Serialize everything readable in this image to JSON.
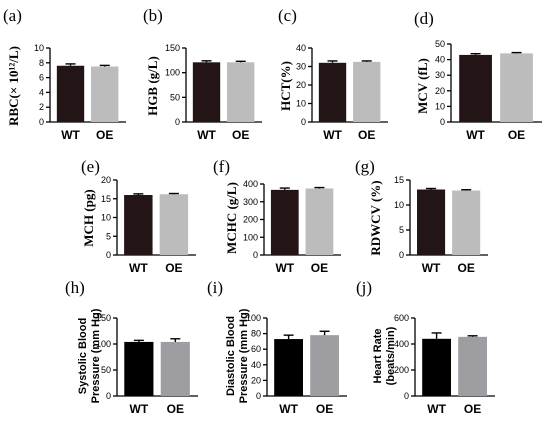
{
  "chart_data": [
    {
      "id": "a",
      "type": "bar",
      "panel_label": "(a)",
      "ylabel": "RBC(× 10¹²/L)",
      "yticks": [
        "0",
        "2",
        "4",
        "6",
        "8",
        "10"
      ],
      "ylim": [
        0,
        10
      ],
      "categories": [
        "WT",
        "OE"
      ],
      "values": [
        7.6,
        7.5
      ],
      "errors": [
        0.25,
        0.15
      ],
      "colors": [
        "#231416",
        "#bcbcbc"
      ]
    },
    {
      "id": "b",
      "type": "bar",
      "panel_label": "(b)",
      "ylabel": "HGB (g/L)",
      "yticks": [
        "0",
        "50",
        "100",
        "150"
      ],
      "ylim": [
        0,
        150
      ],
      "categories": [
        "WT",
        "OE"
      ],
      "values": [
        121,
        121
      ],
      "errors": [
        3,
        2
      ],
      "colors": [
        "#231416",
        "#bcbcbc"
      ]
    },
    {
      "id": "c",
      "type": "bar",
      "panel_label": "(c)",
      "ylabel": "HCT(%)",
      "yticks": [
        "0",
        "10",
        "20",
        "30",
        "40"
      ],
      "ylim": [
        0,
        40
      ],
      "categories": [
        "WT",
        "OE"
      ],
      "values": [
        32,
        32.5
      ],
      "errors": [
        1,
        0.5
      ],
      "colors": [
        "#231416",
        "#bcbcbc"
      ]
    },
    {
      "id": "d",
      "type": "bar",
      "panel_label": "(d)",
      "ylabel": "MCV (fL)",
      "yticks": [
        "0",
        "10",
        "20",
        "30",
        "40",
        "50"
      ],
      "ylim": [
        0,
        50
      ],
      "categories": [
        "WT",
        "OE"
      ],
      "values": [
        43,
        44
      ],
      "errors": [
        0.8,
        0.5
      ],
      "colors": [
        "#231416",
        "#bcbcbc"
      ]
    },
    {
      "id": "e",
      "type": "bar",
      "panel_label": "(e)",
      "ylabel": "MCH (pg)",
      "yticks": [
        "0",
        "5",
        "10",
        "15",
        "20"
      ],
      "ylim": [
        0,
        20
      ],
      "categories": [
        "WT",
        "OE"
      ],
      "values": [
        16,
        16.2
      ],
      "errors": [
        0.3,
        0.2
      ],
      "colors": [
        "#231416",
        "#bcbcbc"
      ]
    },
    {
      "id": "f",
      "type": "bar",
      "panel_label": "(f)",
      "ylabel": "MCHC (g/L)",
      "yticks": [
        "0",
        "100",
        "200",
        "300",
        "400"
      ],
      "ylim": [
        0,
        400
      ],
      "categories": [
        "WT",
        "OE"
      ],
      "values": [
        367,
        375
      ],
      "errors": [
        10,
        5
      ],
      "colors": [
        "#231416",
        "#bcbcbc"
      ]
    },
    {
      "id": "g",
      "type": "bar",
      "panel_label": "(g)",
      "ylabel": "RDWCV (%)",
      "yticks": [
        "0",
        "5",
        "10",
        "15"
      ],
      "ylim": [
        0,
        15
      ],
      "categories": [
        "WT",
        "OE"
      ],
      "values": [
        13.1,
        12.9
      ],
      "errors": [
        0.2,
        0.15
      ],
      "colors": [
        "#231416",
        "#bcbcbc"
      ]
    },
    {
      "id": "h",
      "type": "bar",
      "panel_label": "(h)",
      "ylabel": "Systolic Blood Pressure (mm Hg)",
      "yticks": [
        "0",
        "50",
        "100",
        "150"
      ],
      "ylim": [
        0,
        150
      ],
      "categories": [
        "WT",
        "OE"
      ],
      "values": [
        104,
        104
      ],
      "errors": [
        3,
        6
      ],
      "colors": [
        "#000000",
        "#9e9ea2"
      ]
    },
    {
      "id": "i",
      "type": "bar",
      "panel_label": "(i)",
      "ylabel": "Diastolic Blood Pressure (mm Hg)",
      "yticks": [
        "0",
        "20",
        "40",
        "60",
        "80",
        "100"
      ],
      "ylim": [
        0,
        100
      ],
      "categories": [
        "WT",
        "OE"
      ],
      "values": [
        73,
        78
      ],
      "errors": [
        5,
        5
      ],
      "colors": [
        "#000000",
        "#9e9ea2"
      ]
    },
    {
      "id": "j",
      "type": "bar",
      "panel_label": "(j)",
      "ylabel": "Heart Rate (beats/min)",
      "yticks": [
        "0",
        "200",
        "400",
        "600"
      ],
      "ylim": [
        0,
        600
      ],
      "categories": [
        "WT",
        "OE"
      ],
      "values": [
        440,
        455
      ],
      "errors": [
        45,
        8
      ],
      "colors": [
        "#000000",
        "#9e9ea2"
      ]
    }
  ]
}
